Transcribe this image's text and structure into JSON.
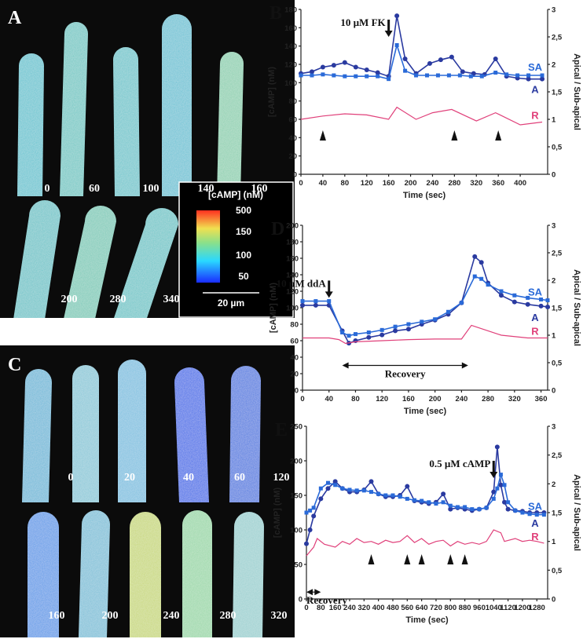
{
  "image_panels": [
    {
      "label": "A",
      "times": [
        0,
        60,
        100,
        140,
        160,
        200,
        280,
        340
      ],
      "colorbar": {
        "title": "[cAMP] (nM)",
        "ticks": [
          500,
          150,
          100,
          50
        ]
      },
      "scale_bar": "20 µm"
    },
    {
      "label": "C",
      "times": [
        0,
        20,
        40,
        60,
        120,
        160,
        200,
        240,
        280,
        320
      ]
    }
  ],
  "chart_data": [
    {
      "type": "line",
      "panel": "B",
      "xlabel": "Time (sec)",
      "ylabel": "[cAMP] (nM)",
      "y2label": "Apical / Sub-apical",
      "xlim": [
        0,
        450
      ],
      "xticks": [
        0,
        40,
        80,
        120,
        160,
        200,
        240,
        280,
        320,
        360,
        400
      ],
      "ylim": [
        0,
        180
      ],
      "yticks": [
        0,
        20,
        40,
        60,
        80,
        100,
        120,
        140,
        160,
        180
      ],
      "y2lim": [
        0,
        3
      ],
      "y2ticks": [
        0,
        {
          "value": 0.5,
          "label": "0,5"
        },
        1,
        {
          "value": 1.5,
          "label": "1,5"
        },
        2,
        {
          "value": 2.5,
          "label": "2,5"
        },
        3
      ],
      "series": [
        {
          "name": "A",
          "color": "#2a3aa0",
          "marker": "circle",
          "x": [
            0,
            20,
            40,
            60,
            80,
            100,
            120,
            140,
            160,
            175,
            190,
            210,
            235,
            255,
            275,
            295,
            315,
            335,
            355,
            375,
            395,
            415,
            440
          ],
          "values": [
            110,
            112,
            117,
            119,
            122,
            117,
            114,
            111,
            107,
            173,
            126,
            110,
            121,
            125,
            128,
            112,
            110,
            109,
            126,
            107,
            105,
            104,
            104
          ]
        },
        {
          "name": "SA",
          "color": "#2a6ad8",
          "marker": "square",
          "x": [
            0,
            20,
            40,
            60,
            80,
            100,
            120,
            140,
            160,
            175,
            190,
            210,
            230,
            250,
            270,
            290,
            310,
            330,
            355,
            375,
            395,
            415,
            440
          ],
          "values": [
            108,
            108,
            109,
            108,
            107,
            107,
            107,
            107,
            104,
            141,
            113,
            108,
            108,
            108,
            108,
            108,
            107,
            107,
            111,
            109,
            108,
            108,
            108
          ]
        },
        {
          "name": "R",
          "color": "#e0407a",
          "axis": "y2",
          "x": [
            0,
            40,
            80,
            120,
            160,
            175,
            210,
            240,
            275,
            320,
            355,
            400,
            440
          ],
          "values": [
            1.0,
            1.06,
            1.1,
            1.08,
            1.0,
            1.22,
            1.0,
            1.12,
            1.18,
            0.97,
            1.12,
            0.9,
            0.95
          ]
        }
      ],
      "event_markers": [
        40,
        280,
        360
      ],
      "annotations": [
        {
          "text": "10 µM FK",
          "x": 160,
          "y": 150
        }
      ]
    },
    {
      "type": "line",
      "panel": "D",
      "xlabel": "Time (sec)",
      "ylabel": "[cAMP] (nM)",
      "y2label": "Apical / Sub-apical",
      "xlim": [
        0,
        370
      ],
      "xticks": [
        0,
        40,
        80,
        120,
        160,
        200,
        240,
        280,
        320,
        360
      ],
      "ylim": [
        0,
        200
      ],
      "yticks": [
        0,
        20,
        40,
        60,
        80,
        100,
        120,
        140,
        160,
        180,
        200
      ],
      "y2lim": [
        0,
        3
      ],
      "y2ticks": [
        0,
        {
          "value": 0.5,
          "label": "0,5"
        },
        1,
        {
          "value": 1.5,
          "label": "1,5"
        },
        2,
        {
          "value": 2.5,
          "label": "2,5"
        },
        3
      ],
      "series": [
        {
          "name": "A",
          "color": "#2a3aa0",
          "marker": "circle",
          "x": [
            0,
            20,
            40,
            60,
            70,
            80,
            100,
            120,
            140,
            160,
            180,
            200,
            220,
            240,
            260,
            270,
            280,
            300,
            320,
            340,
            360,
            370
          ],
          "values": [
            103,
            103,
            103,
            72,
            57,
            60,
            64,
            67,
            72,
            74,
            80,
            85,
            92,
            106,
            162,
            155,
            130,
            115,
            107,
            104,
            102,
            101
          ]
        },
        {
          "name": "SA",
          "color": "#2a6ad8",
          "marker": "square",
          "x": [
            0,
            20,
            40,
            60,
            70,
            80,
            100,
            120,
            140,
            160,
            180,
            200,
            220,
            240,
            260,
            270,
            280,
            300,
            320,
            340,
            360,
            370
          ],
          "values": [
            108,
            108,
            108,
            70,
            66,
            68,
            70,
            73,
            77,
            80,
            83,
            86,
            95,
            106,
            138,
            135,
            128,
            120,
            115,
            112,
            110,
            109
          ]
        },
        {
          "name": "R",
          "color": "#e0407a",
          "axis": "y2",
          "x": [
            0,
            40,
            55,
            65,
            80,
            120,
            160,
            200,
            240,
            255,
            300,
            340,
            370
          ],
          "values": [
            0.95,
            0.95,
            0.92,
            0.85,
            0.88,
            0.9,
            0.92,
            0.93,
            0.93,
            1.18,
            1.0,
            0.95,
            0.95
          ]
        }
      ],
      "annotations": [
        {
          "text": "10 µM ddA",
          "x": 40,
          "y": 112
        }
      ],
      "recovery": {
        "text": "Recovery",
        "xrange": [
          60,
          250
        ],
        "y": 30
      }
    },
    {
      "type": "line",
      "panel": "E",
      "xlabel": "Time (sec)",
      "ylabel": "[cAMP] (nM)",
      "y2label": "Apical / Sub-apical",
      "xlim": [
        0,
        1340
      ],
      "xticks": [
        0,
        80,
        160,
        240,
        320,
        400,
        480,
        560,
        640,
        720,
        800,
        880,
        960,
        1040,
        1120,
        1200,
        1280
      ],
      "ylim": [
        0,
        250
      ],
      "yticks": [
        0,
        50,
        100,
        150,
        200,
        250
      ],
      "y2lim": [
        0,
        3
      ],
      "y2ticks": [
        0,
        {
          "value": 0.5,
          "label": "0,5"
        },
        1,
        {
          "value": 1.5,
          "label": "1,5"
        },
        2,
        {
          "value": 2.5,
          "label": "2,5"
        },
        3
      ],
      "series": [
        {
          "name": "A",
          "color": "#2a3aa0",
          "marker": "circle",
          "x": [
            0,
            20,
            40,
            80,
            120,
            160,
            200,
            240,
            280,
            320,
            360,
            400,
            440,
            480,
            520,
            560,
            600,
            640,
            680,
            720,
            760,
            800,
            840,
            880,
            920,
            960,
            1000,
            1040,
            1060,
            1080,
            1100,
            1120,
            1160,
            1200,
            1240,
            1280,
            1320
          ],
          "values": [
            80,
            100,
            120,
            145,
            160,
            170,
            160,
            155,
            155,
            158,
            170,
            152,
            148,
            148,
            150,
            163,
            142,
            140,
            138,
            140,
            152,
            130,
            132,
            130,
            128,
            130,
            132,
            155,
            220,
            165,
            140,
            130,
            128,
            127,
            125,
            125,
            125
          ]
        },
        {
          "name": "SA",
          "color": "#2a6ad8",
          "marker": "square",
          "x": [
            0,
            20,
            40,
            80,
            120,
            160,
            200,
            240,
            280,
            320,
            360,
            400,
            440,
            480,
            520,
            560,
            600,
            640,
            680,
            720,
            760,
            800,
            840,
            880,
            920,
            960,
            1000,
            1040,
            1060,
            1080,
            1100,
            1120,
            1160,
            1200,
            1240,
            1280,
            1320
          ],
          "values": [
            125,
            128,
            132,
            160,
            168,
            165,
            160,
            158,
            157,
            157,
            155,
            152,
            150,
            150,
            148,
            145,
            143,
            142,
            140,
            138,
            140,
            135,
            133,
            133,
            130,
            130,
            132,
            145,
            160,
            180,
            165,
            140,
            128,
            125,
            123,
            122,
            122
          ]
        },
        {
          "name": "R",
          "color": "#e0407a",
          "axis": "y2",
          "x": [
            0,
            40,
            60,
            100,
            160,
            200,
            240,
            280,
            320,
            360,
            400,
            440,
            480,
            520,
            560,
            600,
            640,
            680,
            720,
            760,
            800,
            840,
            880,
            920,
            960,
            1000,
            1040,
            1080,
            1100,
            1160,
            1200,
            1240,
            1280,
            1320
          ],
          "values": [
            0.75,
            0.9,
            1.05,
            0.95,
            0.9,
            1.0,
            0.95,
            1.05,
            0.98,
            1.0,
            0.95,
            1.02,
            0.98,
            1.0,
            1.1,
            0.98,
            1.05,
            0.95,
            1.0,
            1.02,
            0.92,
            1.0,
            0.95,
            0.98,
            0.95,
            1.0,
            1.2,
            1.15,
            1.0,
            1.05,
            1.0,
            1.02,
            1.0,
            0.97
          ]
        }
      ],
      "event_markers": [
        360,
        560,
        640,
        800,
        880
      ],
      "annotations": [
        {
          "text": "0.5 µM cAMP",
          "x": 1040,
          "y": 175
        }
      ],
      "recovery": {
        "text": "Recovery",
        "xrange": [
          0,
          80
        ],
        "y": 10
      }
    }
  ]
}
